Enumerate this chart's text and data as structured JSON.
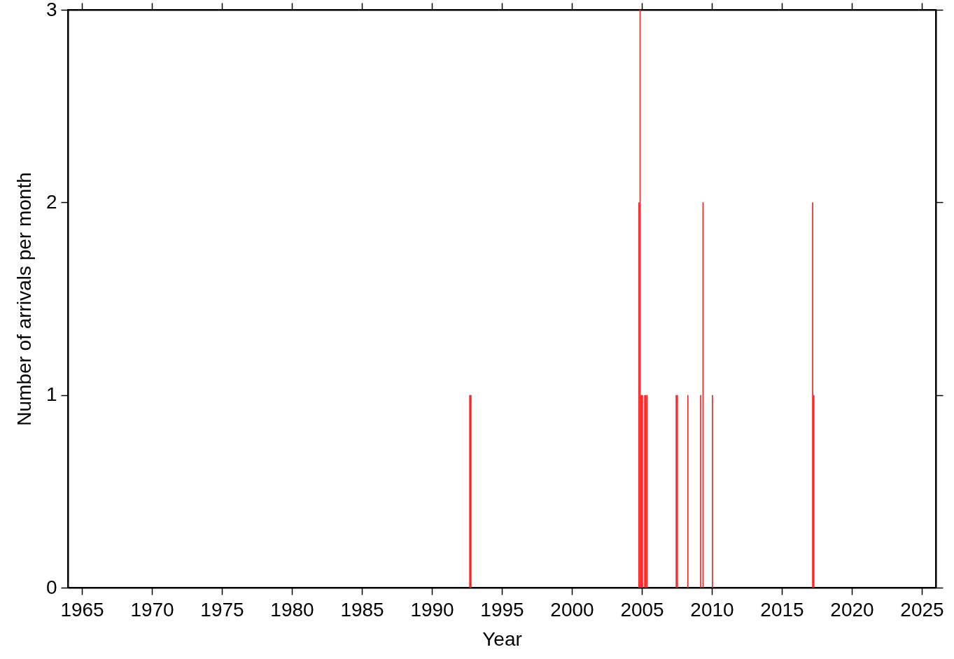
{
  "chart_data": {
    "type": "bar",
    "xlabel": "Year",
    "ylabel": "Number of arrivals per month",
    "x": [
      "1992-09",
      "1992-10",
      "2004-10",
      "2004-11",
      "2004-12",
      "2005-01",
      "2005-03",
      "2005-04",
      "2005-05",
      "2007-06",
      "2007-07",
      "2008-04",
      "2009-03",
      "2009-05",
      "2010-01",
      "2017-03",
      "2017-04"
    ],
    "values": [
      1,
      1,
      2,
      3,
      1,
      1,
      1,
      1,
      1,
      1,
      1,
      1,
      1,
      2,
      1,
      2,
      1
    ],
    "color": "#ff2020",
    "xlim": [
      "1964",
      "2026"
    ],
    "xticks": [
      "1965",
      "1970",
      "1975",
      "1980",
      "1985",
      "1990",
      "1995",
      "2000",
      "2005",
      "2010",
      "2015",
      "2020",
      "2025"
    ],
    "ylim": [
      0,
      3
    ],
    "yticks": [
      0,
      1,
      2,
      3
    ],
    "grid": false
  }
}
